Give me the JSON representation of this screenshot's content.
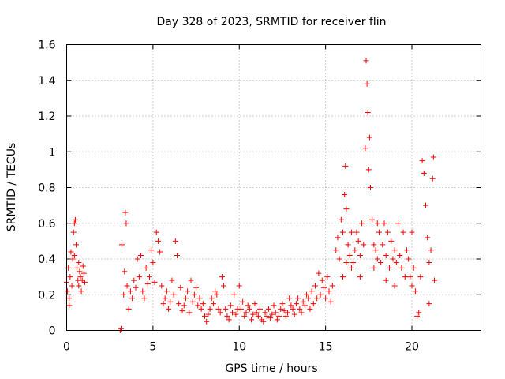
{
  "chart_data": {
    "type": "scatter",
    "title": "Day 328 of 2023, SRMTID for receiver flin",
    "xlabel": "GPS time / hours",
    "ylabel": "SRMTID / TECUs",
    "xlim": [
      0,
      24
    ],
    "ylim": [
      0,
      1.6
    ],
    "xticks": [
      0,
      5,
      10,
      15,
      20
    ],
    "xtick_labels": [
      "0",
      "5",
      "10",
      "15",
      "20"
    ],
    "yticks": [
      0,
      0.2,
      0.4,
      0.6,
      0.8,
      1.0,
      1.2,
      1.4,
      1.6
    ],
    "ytick_labels": [
      "0",
      "0.2",
      "0.4",
      "0.6",
      "0.8",
      "1",
      "1.2",
      "1.4",
      "1.6"
    ],
    "grid": true,
    "marker": "+",
    "color": "#ff0000",
    "series": [
      {
        "name": "flin",
        "points": [
          [
            0.0,
            0.27
          ],
          [
            0.05,
            0.22
          ],
          [
            0.1,
            0.35
          ],
          [
            0.15,
            0.18
          ],
          [
            0.2,
            0.3
          ],
          [
            0.25,
            0.44
          ],
          [
            0.3,
            0.25
          ],
          [
            0.35,
            0.4
          ],
          [
            0.4,
            0.55
          ],
          [
            0.45,
            0.6
          ],
          [
            0.5,
            0.62
          ],
          [
            0.55,
            0.48
          ],
          [
            0.6,
            0.35
          ],
          [
            0.65,
            0.28
          ],
          [
            0.7,
            0.25
          ],
          [
            0.75,
            0.33
          ],
          [
            0.8,
            0.3
          ],
          [
            0.85,
            0.22
          ],
          [
            0.9,
            0.28
          ],
          [
            0.95,
            0.36
          ],
          [
            1.0,
            0.32
          ],
          [
            1.05,
            0.27
          ],
          [
            0.15,
            0.14
          ],
          [
            0.45,
            0.42
          ],
          [
            0.7,
            0.38
          ],
          [
            3.1,
            0.0
          ],
          [
            3.15,
            0.01
          ],
          [
            3.2,
            0.48
          ],
          [
            3.3,
            0.2
          ],
          [
            3.35,
            0.33
          ],
          [
            3.4,
            0.66
          ],
          [
            3.45,
            0.6
          ],
          [
            3.5,
            0.25
          ],
          [
            3.6,
            0.12
          ],
          [
            3.7,
            0.22
          ],
          [
            3.8,
            0.18
          ],
          [
            3.9,
            0.28
          ],
          [
            4.0,
            0.24
          ],
          [
            4.1,
            0.4
          ],
          [
            4.2,
            0.3
          ],
          [
            4.3,
            0.42
          ],
          [
            4.4,
            0.22
          ],
          [
            4.5,
            0.18
          ],
          [
            4.6,
            0.35
          ],
          [
            4.7,
            0.26
          ],
          [
            4.8,
            0.3
          ],
          [
            4.9,
            0.45
          ],
          [
            5.0,
            0.38
          ],
          [
            5.1,
            0.27
          ],
          [
            5.2,
            0.55
          ],
          [
            5.3,
            0.5
          ],
          [
            5.4,
            0.44
          ],
          [
            5.5,
            0.25
          ],
          [
            5.6,
            0.15
          ],
          [
            5.7,
            0.18
          ],
          [
            5.8,
            0.22
          ],
          [
            5.9,
            0.12
          ],
          [
            6.0,
            0.16
          ],
          [
            6.1,
            0.28
          ],
          [
            6.2,
            0.2
          ],
          [
            6.3,
            0.5
          ],
          [
            6.4,
            0.42
          ],
          [
            6.5,
            0.15
          ],
          [
            6.6,
            0.24
          ],
          [
            6.7,
            0.11
          ],
          [
            6.8,
            0.14
          ],
          [
            6.9,
            0.18
          ],
          [
            7.0,
            0.22
          ],
          [
            7.1,
            0.1
          ],
          [
            7.2,
            0.28
          ],
          [
            7.3,
            0.16
          ],
          [
            7.4,
            0.2
          ],
          [
            7.5,
            0.24
          ],
          [
            7.6,
            0.14
          ],
          [
            7.7,
            0.18
          ],
          [
            7.8,
            0.12
          ],
          [
            7.9,
            0.15
          ],
          [
            8.0,
            0.08
          ],
          [
            8.1,
            0.05
          ],
          [
            8.2,
            0.09
          ],
          [
            8.3,
            0.12
          ],
          [
            8.4,
            0.18
          ],
          [
            8.5,
            0.15
          ],
          [
            8.6,
            0.22
          ],
          [
            8.7,
            0.2
          ],
          [
            8.8,
            0.12
          ],
          [
            8.9,
            0.1
          ],
          [
            9.0,
            0.3
          ],
          [
            9.1,
            0.25
          ],
          [
            9.2,
            0.12
          ],
          [
            9.3,
            0.08
          ],
          [
            9.4,
            0.06
          ],
          [
            9.5,
            0.14
          ],
          [
            9.6,
            0.1
          ],
          [
            9.7,
            0.2
          ],
          [
            9.8,
            0.09
          ],
          [
            9.9,
            0.12
          ],
          [
            10.0,
            0.25
          ],
          [
            10.1,
            0.12
          ],
          [
            10.2,
            0.16
          ],
          [
            10.3,
            0.08
          ],
          [
            10.4,
            0.1
          ],
          [
            10.5,
            0.14
          ],
          [
            10.6,
            0.12
          ],
          [
            10.7,
            0.06
          ],
          [
            10.8,
            0.09
          ],
          [
            10.9,
            0.15
          ],
          [
            11.0,
            0.1
          ],
          [
            11.1,
            0.08
          ],
          [
            11.2,
            0.12
          ],
          [
            11.3,
            0.06
          ],
          [
            11.4,
            0.05
          ],
          [
            11.5,
            0.1
          ],
          [
            11.6,
            0.08
          ],
          [
            11.7,
            0.12
          ],
          [
            11.8,
            0.07
          ],
          [
            11.9,
            0.09
          ],
          [
            12.0,
            0.14
          ],
          [
            12.1,
            0.1
          ],
          [
            12.2,
            0.06
          ],
          [
            12.3,
            0.08
          ],
          [
            12.4,
            0.12
          ],
          [
            12.5,
            0.15
          ],
          [
            12.6,
            0.11
          ],
          [
            12.7,
            0.08
          ],
          [
            12.8,
            0.1
          ],
          [
            12.9,
            0.18
          ],
          [
            13.0,
            0.14
          ],
          [
            13.1,
            0.12
          ],
          [
            13.2,
            0.09
          ],
          [
            13.3,
            0.15
          ],
          [
            13.4,
            0.18
          ],
          [
            13.5,
            0.12
          ],
          [
            13.6,
            0.1
          ],
          [
            13.7,
            0.16
          ],
          [
            13.8,
            0.14
          ],
          [
            13.9,
            0.2
          ],
          [
            14.0,
            0.18
          ],
          [
            14.1,
            0.12
          ],
          [
            14.2,
            0.22
          ],
          [
            14.3,
            0.15
          ],
          [
            14.4,
            0.25
          ],
          [
            14.5,
            0.18
          ],
          [
            14.6,
            0.32
          ],
          [
            14.7,
            0.2
          ],
          [
            14.8,
            0.28
          ],
          [
            14.9,
            0.24
          ],
          [
            15.0,
            0.18
          ],
          [
            15.1,
            0.3
          ],
          [
            15.2,
            0.22
          ],
          [
            15.3,
            0.16
          ],
          [
            15.4,
            0.25
          ],
          [
            15.6,
            0.45
          ],
          [
            15.7,
            0.52
          ],
          [
            15.8,
            0.4
          ],
          [
            15.9,
            0.62
          ],
          [
            16.0,
            0.55
          ],
          [
            16.1,
            0.76
          ],
          [
            16.15,
            0.92
          ],
          [
            16.2,
            0.68
          ],
          [
            16.3,
            0.48
          ],
          [
            16.4,
            0.42
          ],
          [
            16.5,
            0.35
          ],
          [
            16.6,
            0.38
          ],
          [
            16.7,
            0.45
          ],
          [
            16.8,
            0.55
          ],
          [
            16.9,
            0.5
          ],
          [
            17.0,
            0.42
          ],
          [
            17.1,
            0.6
          ],
          [
            17.2,
            0.48
          ],
          [
            17.3,
            1.02
          ],
          [
            17.35,
            1.51
          ],
          [
            17.4,
            1.38
          ],
          [
            17.45,
            1.22
          ],
          [
            17.5,
            0.9
          ],
          [
            17.55,
            1.08
          ],
          [
            17.6,
            0.8
          ],
          [
            17.7,
            0.62
          ],
          [
            17.8,
            0.48
          ],
          [
            17.9,
            0.45
          ],
          [
            18.0,
            0.4
          ],
          [
            18.1,
            0.55
          ],
          [
            18.2,
            0.38
          ],
          [
            18.3,
            0.48
          ],
          [
            18.4,
            0.6
          ],
          [
            18.5,
            0.42
          ],
          [
            18.6,
            0.55
          ],
          [
            18.7,
            0.35
          ],
          [
            18.8,
            0.5
          ],
          [
            18.9,
            0.4
          ],
          [
            19.0,
            0.45
          ],
          [
            19.1,
            0.38
          ],
          [
            19.2,
            0.6
          ],
          [
            19.3,
            0.42
          ],
          [
            19.4,
            0.35
          ],
          [
            19.5,
            0.55
          ],
          [
            19.6,
            0.3
          ],
          [
            19.7,
            0.45
          ],
          [
            19.8,
            0.4
          ],
          [
            19.9,
            0.3
          ],
          [
            20.0,
            0.25
          ],
          [
            20.1,
            0.35
          ],
          [
            20.2,
            0.22
          ],
          [
            20.3,
            0.08
          ],
          [
            20.4,
            0.1
          ],
          [
            20.5,
            0.3
          ],
          [
            20.6,
            0.95
          ],
          [
            20.7,
            0.88
          ],
          [
            20.8,
            0.7
          ],
          [
            20.9,
            0.52
          ],
          [
            21.0,
            0.38
          ],
          [
            21.1,
            0.45
          ],
          [
            21.2,
            0.85
          ],
          [
            21.25,
            0.97
          ],
          [
            21.3,
            0.28
          ],
          [
            16.0,
            0.3
          ],
          [
            16.5,
            0.55
          ],
          [
            17.0,
            0.3
          ],
          [
            18.0,
            0.6
          ],
          [
            19.0,
            0.25
          ],
          [
            20.0,
            0.55
          ],
          [
            21.0,
            0.15
          ],
          [
            18.5,
            0.28
          ],
          [
            17.8,
            0.35
          ],
          [
            16.2,
            0.38
          ]
        ]
      }
    ]
  }
}
